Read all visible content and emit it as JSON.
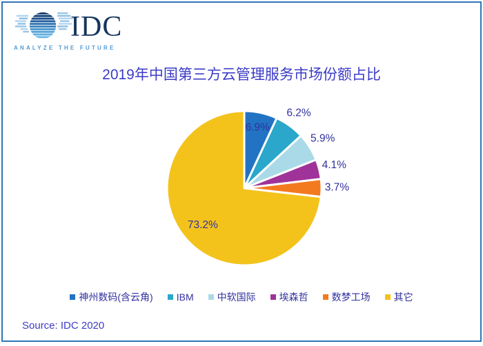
{
  "logo": {
    "text": "IDC",
    "tagline": "ANALYZE THE FUTURE"
  },
  "title": "2019年中国第三方云管理服务市场份额占比",
  "source": "Source: IDC 2020",
  "colors": {
    "frame_border": "#2E75B6",
    "title_text": "#3B3BC8",
    "percent_label_text": "#31319E",
    "legend_text": "#31319E",
    "source_text": "#3C3CC6",
    "logo_word": "#17365D",
    "logo_tagline": "#4E9BD4"
  },
  "chart_data": {
    "type": "pie",
    "title": "2019年中国第三方云管理服务市场份额占比",
    "categories": [
      "神州数码(含云角)",
      "IBM",
      "中软国际",
      "埃森哲",
      "数梦工场",
      "其它"
    ],
    "values": [
      6.9,
      6.2,
      5.9,
      4.1,
      3.7,
      73.2
    ],
    "labels": [
      "6.9%",
      "6.2%",
      "5.9%",
      "4.1%",
      "3.7%",
      "73.2%"
    ],
    "slice_colors": [
      "#2273C3",
      "#2AA7CA",
      "#AADAE8",
      "#A03399",
      "#F47A20",
      "#F3C31C"
    ],
    "start_angle_deg": 0,
    "direction": "clockwise",
    "label_placement": [
      "inside",
      "outside",
      "outside",
      "outside",
      "outside",
      "inside"
    ],
    "legend_position": "bottom",
    "separator_color": "#ffffff"
  },
  "legend": {
    "items": [
      {
        "label": "神州数码(含云角)"
      },
      {
        "label": "IBM"
      },
      {
        "label": "中软国际"
      },
      {
        "label": "埃森哲"
      },
      {
        "label": "数梦工场"
      },
      {
        "label": "其它"
      }
    ]
  }
}
